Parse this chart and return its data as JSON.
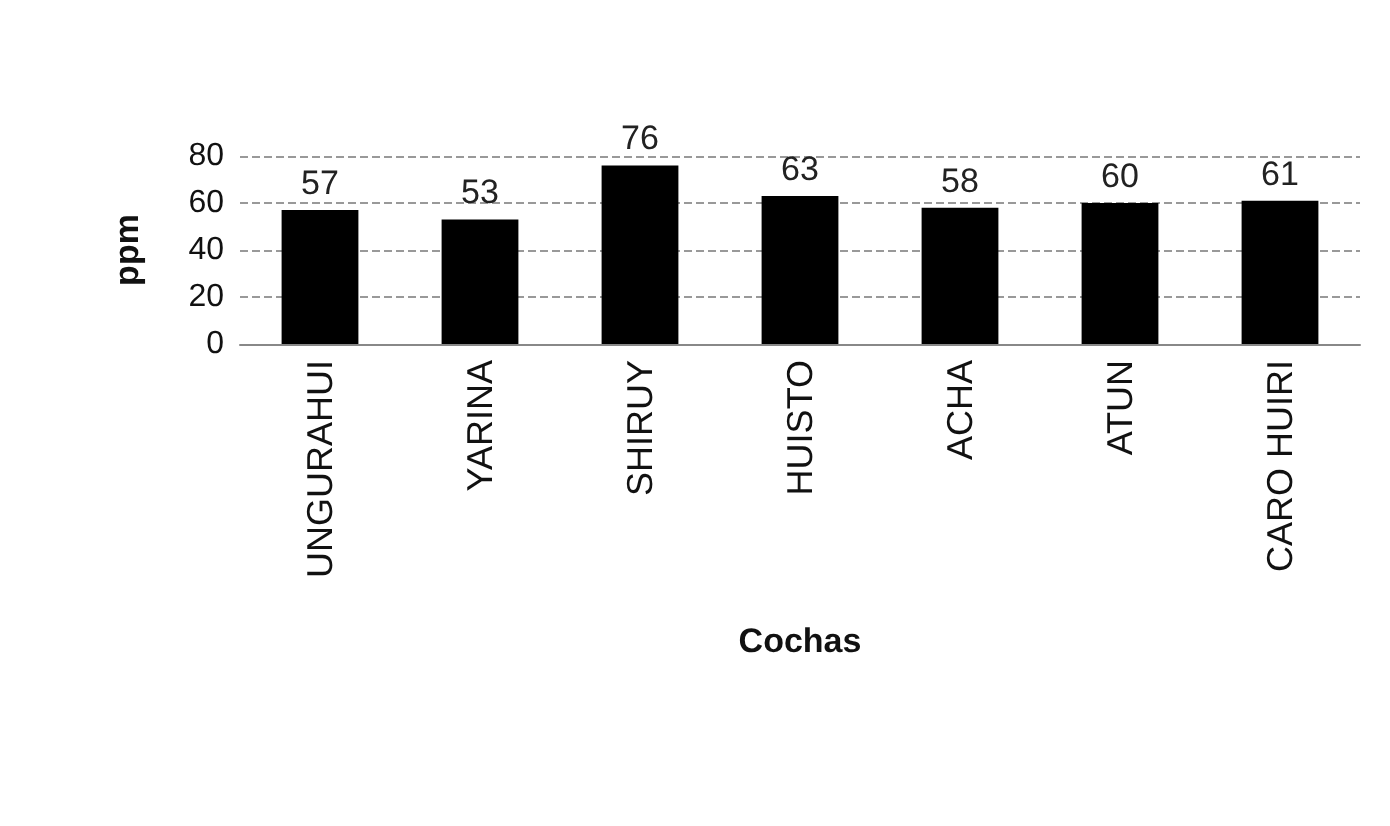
{
  "chart_data": {
    "type": "bar",
    "xlabel": "Cochas",
    "ylabel": "ppm",
    "categories": [
      "UNGURAHUI",
      "YARINA",
      "SHIRUY",
      "HUISTO",
      "ACHA",
      "ATUN",
      "CARO HUIRI"
    ],
    "values": [
      57,
      53,
      76,
      63,
      58,
      60,
      61
    ],
    "color": "#000000",
    "ylim": [
      0,
      80
    ],
    "yticks": [
      0,
      20,
      40,
      60,
      80
    ],
    "grid": "y",
    "data_labels": true
  }
}
